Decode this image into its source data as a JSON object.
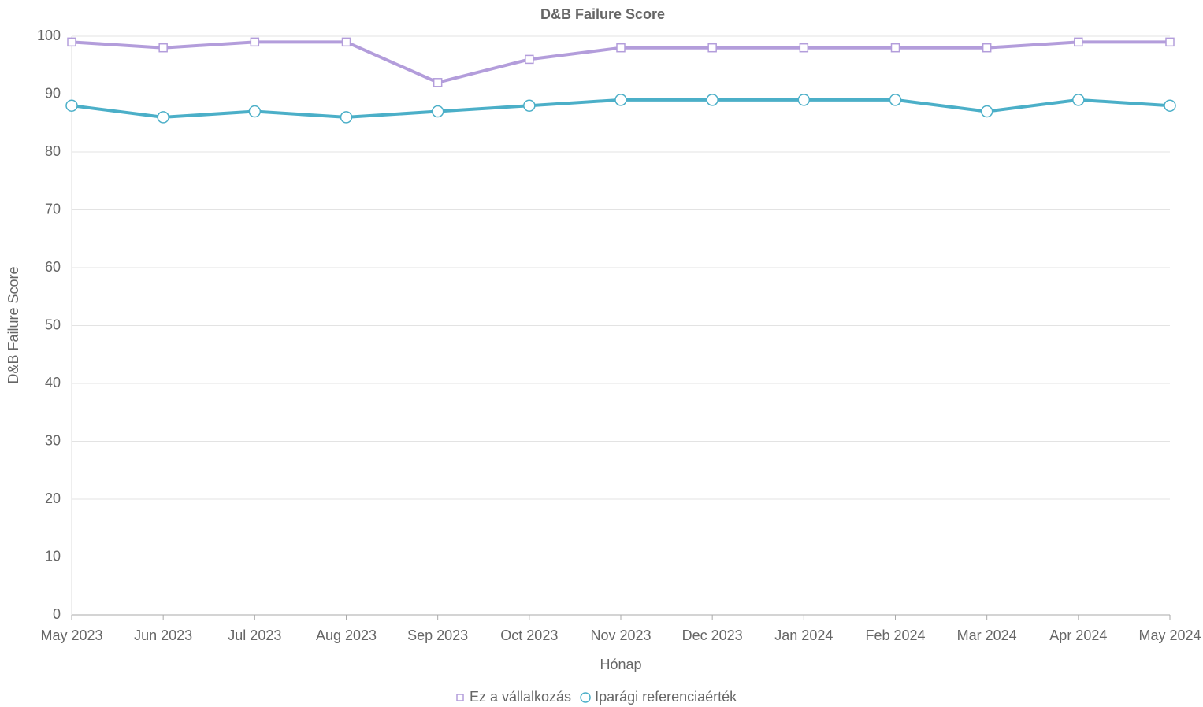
{
  "chart_data": {
    "type": "line",
    "title": "D&B Failure Score",
    "x_label": "Hónap",
    "y_label": "D&B Failure Score",
    "categories": [
      "May 2023",
      "Jun 2023",
      "Jul 2023",
      "Aug 2023",
      "Sep 2023",
      "Oct 2023",
      "Nov 2023",
      "Dec 2023",
      "Jan 2024",
      "Feb 2024",
      "Mar 2024",
      "Apr 2024",
      "May 2024"
    ],
    "series": [
      {
        "name": "Ez a vállalkozás",
        "color": "#b39ddb",
        "marker": "square",
        "values": [
          99,
          98,
          99,
          99,
          92,
          96,
          98,
          98,
          98,
          98,
          98,
          99,
          99
        ]
      },
      {
        "name": "Iparági referenciaérték",
        "color": "#4bafc8",
        "marker": "circle",
        "values": [
          88,
          86,
          87,
          86,
          87,
          88,
          89,
          89,
          89,
          89,
          87,
          89,
          88
        ]
      }
    ],
    "ylim": [
      0,
      100
    ],
    "yticks": [
      0,
      10,
      20,
      30,
      40,
      50,
      60,
      70,
      80,
      90,
      100
    ],
    "grid": true,
    "legend": "bottom"
  }
}
